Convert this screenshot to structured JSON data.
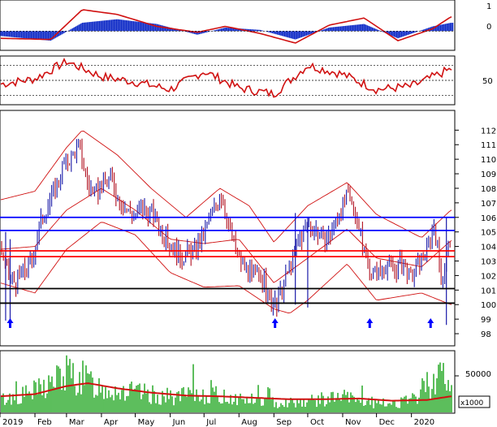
{
  "colors": {
    "background": "#ffffff",
    "price_bar": "#1a1aa8",
    "price_bar_alt": "#b01020",
    "bands": "#d01010",
    "h_blue": "#0000ff",
    "h_red": "#ff0000",
    "h_black": "#000000",
    "osc_pos": "#1530c8",
    "osc_line": "#d01010",
    "rsi_line": "#d01010",
    "volume": "#17a317",
    "vol_ma": "#d01010",
    "arrow": "#0000ff"
  },
  "chart_data": [
    {
      "type": "area",
      "panel": "oscillator",
      "y_ticks": [
        "1",
        "0"
      ],
      "ylim": [
        -0.6,
        1.1
      ],
      "x": [
        "2019-01-01",
        "2019-02-15",
        "2019-03-15",
        "2019-04-15",
        "2019-05-20",
        "2019-06-25",
        "2019-07-20",
        "2019-08-20",
        "2019-09-20",
        "2019-10-20",
        "2019-11-20",
        "2019-12-20",
        "2020-01-20",
        "2020-02-05"
      ],
      "series": [
        {
          "values": [
            -0.2,
            -0.4,
            0.35,
            0.5,
            0.3,
            -0.15,
            0.15,
            0.05,
            -0.35,
            0.15,
            0.3,
            -0.3,
            0.2,
            0.35
          ]
        },
        {
          "values": [
            -0.3,
            -0.35,
            0.9,
            0.7,
            0.2,
            -0.05,
            0.2,
            -0.1,
            -0.5,
            0.25,
            0.55,
            -0.4,
            0.1,
            0.6
          ]
        }
      ]
    },
    {
      "type": "line",
      "panel": "rsi",
      "y_ticks": [
        "50"
      ],
      "ylim": [
        20,
        80
      ],
      "levels": [
        30,
        50,
        70
      ],
      "x": [
        "2019-01-01",
        "2019-02-01",
        "2019-03-01",
        "2019-04-01",
        "2019-05-01",
        "2019-06-01",
        "2019-07-01",
        "2019-08-01",
        "2019-09-01",
        "2019-10-01",
        "2019-11-01",
        "2019-12-01",
        "2020-01-01",
        "2020-02-05"
      ],
      "values": [
        45,
        52,
        75,
        55,
        48,
        38,
        62,
        40,
        32,
        70,
        58,
        38,
        42,
        65
      ]
    },
    {
      "type": "bar",
      "panel": "price",
      "y_ticks": [
        "112",
        "111",
        "110",
        "109",
        "108",
        "107",
        "106",
        "105",
        "104",
        "103",
        "102",
        "101",
        "100",
        "99",
        "98"
      ],
      "ylim": [
        97.5,
        112.8
      ],
      "x_ticks": [
        "2019",
        "Feb",
        "Mar",
        "Apr",
        "May",
        "Jun",
        "Jul",
        "Aug",
        "Sep",
        "Oct",
        "Nov",
        "Dec",
        "2020"
      ],
      "h_lines": [
        {
          "value": 106.0,
          "color": "blue"
        },
        {
          "value": 105.1,
          "color": "blue"
        },
        {
          "value": 103.7,
          "color": "red"
        },
        {
          "value": 103.3,
          "color": "red"
        },
        {
          "value": 101.1,
          "color": "black"
        },
        {
          "value": 100.1,
          "color": "black"
        }
      ],
      "arrows": [
        "2019-01-10",
        "2019-09-02",
        "2019-11-25",
        "2020-01-18"
      ],
      "close": [
        [
          "2019-01-01",
          104.0
        ],
        [
          "2019-01-08",
          102.0
        ],
        [
          "2019-01-15",
          101.5
        ],
        [
          "2019-01-22",
          102.3
        ],
        [
          "2019-01-29",
          103.0
        ],
        [
          "2019-02-05",
          105.5
        ],
        [
          "2019-02-12",
          106.8
        ],
        [
          "2019-02-19",
          108.0
        ],
        [
          "2019-02-26",
          109.5
        ],
        [
          "2019-03-05",
          110.2
        ],
        [
          "2019-03-12",
          111.0
        ],
        [
          "2019-03-19",
          108.5
        ],
        [
          "2019-03-26",
          107.5
        ],
        [
          "2019-04-02",
          108.2
        ],
        [
          "2019-04-09",
          108.8
        ],
        [
          "2019-04-16",
          107.3
        ],
        [
          "2019-04-23",
          106.5
        ],
        [
          "2019-04-30",
          106.2
        ],
        [
          "2019-05-07",
          106.6
        ],
        [
          "2019-05-14",
          106.3
        ],
        [
          "2019-05-21",
          105.8
        ],
        [
          "2019-05-28",
          104.5
        ],
        [
          "2019-06-04",
          103.8
        ],
        [
          "2019-06-11",
          103.3
        ],
        [
          "2019-06-18",
          103.5
        ],
        [
          "2019-06-25",
          103.9
        ],
        [
          "2019-07-02",
          105.0
        ],
        [
          "2019-07-09",
          106.5
        ],
        [
          "2019-07-16",
          107.6
        ],
        [
          "2019-07-23",
          105.5
        ],
        [
          "2019-07-30",
          103.5
        ],
        [
          "2019-08-06",
          102.5
        ],
        [
          "2019-08-13",
          101.8
        ],
        [
          "2019-08-20",
          102.3
        ],
        [
          "2019-08-27",
          100.5
        ],
        [
          "2019-09-03",
          99.8
        ],
        [
          "2019-09-10",
          101.5
        ],
        [
          "2019-09-17",
          103.0
        ],
        [
          "2019-09-24",
          104.5
        ],
        [
          "2019-10-01",
          105.5
        ],
        [
          "2019-10-08",
          105.2
        ],
        [
          "2019-10-15",
          104.2
        ],
        [
          "2019-10-22",
          105.0
        ],
        [
          "2019-10-29",
          106.4
        ],
        [
          "2019-11-05",
          107.4
        ],
        [
          "2019-11-12",
          106.4
        ],
        [
          "2019-11-19",
          104.0
        ],
        [
          "2019-11-26",
          102.2
        ],
        [
          "2019-12-03",
          102.2
        ],
        [
          "2019-12-10",
          102.8
        ],
        [
          "2019-12-17",
          102.4
        ],
        [
          "2019-12-24",
          102.9
        ],
        [
          "2019-12-31",
          101.8
        ],
        [
          "2020-01-07",
          102.6
        ],
        [
          "2020-01-14",
          103.6
        ],
        [
          "2020-01-21",
          105.6
        ],
        [
          "2020-01-28",
          101.5
        ],
        [
          "2020-02-04",
          104.5
        ]
      ],
      "bb_upper": [
        [
          "2019-01-01",
          107.2
        ],
        [
          "2019-02-01",
          107.8
        ],
        [
          "2019-03-01",
          110.8
        ],
        [
          "2019-03-15",
          112.0
        ],
        [
          "2019-04-15",
          110.3
        ],
        [
          "2019-05-15",
          108.0
        ],
        [
          "2019-06-15",
          106.0
        ],
        [
          "2019-07-15",
          108.0
        ],
        [
          "2019-08-10",
          106.8
        ],
        [
          "2019-09-01",
          104.3
        ],
        [
          "2019-10-01",
          106.8
        ],
        [
          "2019-11-05",
          108.4
        ],
        [
          "2019-12-01",
          106.2
        ],
        [
          "2020-01-10",
          104.6
        ],
        [
          "2020-02-05",
          106.5
        ]
      ],
      "bb_mid": [
        [
          "2019-01-01",
          103.8
        ],
        [
          "2019-02-01",
          104.0
        ],
        [
          "2019-03-01",
          106.5
        ],
        [
          "2019-04-01",
          108.0
        ],
        [
          "2019-05-01",
          106.5
        ],
        [
          "2019-06-01",
          104.5
        ],
        [
          "2019-07-01",
          104.2
        ],
        [
          "2019-08-01",
          104.5
        ],
        [
          "2019-09-01",
          101.5
        ],
        [
          "2019-10-01",
          103.2
        ],
        [
          "2019-11-05",
          105.2
        ],
        [
          "2019-12-01",
          103.2
        ],
        [
          "2020-01-10",
          102.6
        ],
        [
          "2020-02-05",
          104.4
        ]
      ],
      "bb_lower": [
        [
          "2019-01-01",
          101.5
        ],
        [
          "2019-02-01",
          100.8
        ],
        [
          "2019-03-01",
          103.8
        ],
        [
          "2019-04-01",
          105.7
        ],
        [
          "2019-05-01",
          104.8
        ],
        [
          "2019-06-01",
          102.2
        ],
        [
          "2019-07-01",
          101.2
        ],
        [
          "2019-08-01",
          101.3
        ],
        [
          "2019-09-01",
          99.7
        ],
        [
          "2019-09-15",
          99.4
        ],
        [
          "2019-10-01",
          100.3
        ],
        [
          "2019-11-05",
          102.8
        ],
        [
          "2019-12-01",
          100.3
        ],
        [
          "2020-01-10",
          100.8
        ],
        [
          "2020-02-05",
          100.0
        ]
      ]
    },
    {
      "type": "bar",
      "panel": "volume",
      "y_ticks": [
        "50000"
      ],
      "unit_label": "x1000",
      "ylim": [
        0,
        80000
      ],
      "volume": [
        [
          "2019-01-01",
          18000
        ],
        [
          "2019-01-15",
          22000
        ],
        [
          "2019-02-01",
          30000
        ],
        [
          "2019-02-15",
          42000
        ],
        [
          "2019-03-01",
          55000
        ],
        [
          "2019-03-15",
          48000
        ],
        [
          "2019-04-01",
          36000
        ],
        [
          "2019-05-01",
          28000
        ],
        [
          "2019-06-01",
          22000
        ],
        [
          "2019-07-01",
          26000
        ],
        [
          "2019-08-01",
          20000
        ],
        [
          "2019-09-01",
          14000
        ],
        [
          "2019-10-01",
          16000
        ],
        [
          "2019-11-01",
          22000
        ],
        [
          "2019-12-01",
          12000
        ],
        [
          "2020-01-01",
          16000
        ],
        [
          "2020-01-25",
          60000
        ],
        [
          "2020-02-05",
          30000
        ]
      ],
      "vol_ma": [
        [
          "2019-01-01",
          22000
        ],
        [
          "2019-02-01",
          25000
        ],
        [
          "2019-03-01",
          36000
        ],
        [
          "2019-03-20",
          40000
        ],
        [
          "2019-04-15",
          33000
        ],
        [
          "2019-05-15",
          27000
        ],
        [
          "2019-06-15",
          23000
        ],
        [
          "2019-07-15",
          22000
        ],
        [
          "2019-08-15",
          20000
        ],
        [
          "2019-09-15",
          18000
        ],
        [
          "2019-10-15",
          18000
        ],
        [
          "2019-11-15",
          19000
        ],
        [
          "2019-12-15",
          16000
        ],
        [
          "2020-01-15",
          17000
        ],
        [
          "2020-02-05",
          22000
        ]
      ]
    }
  ]
}
